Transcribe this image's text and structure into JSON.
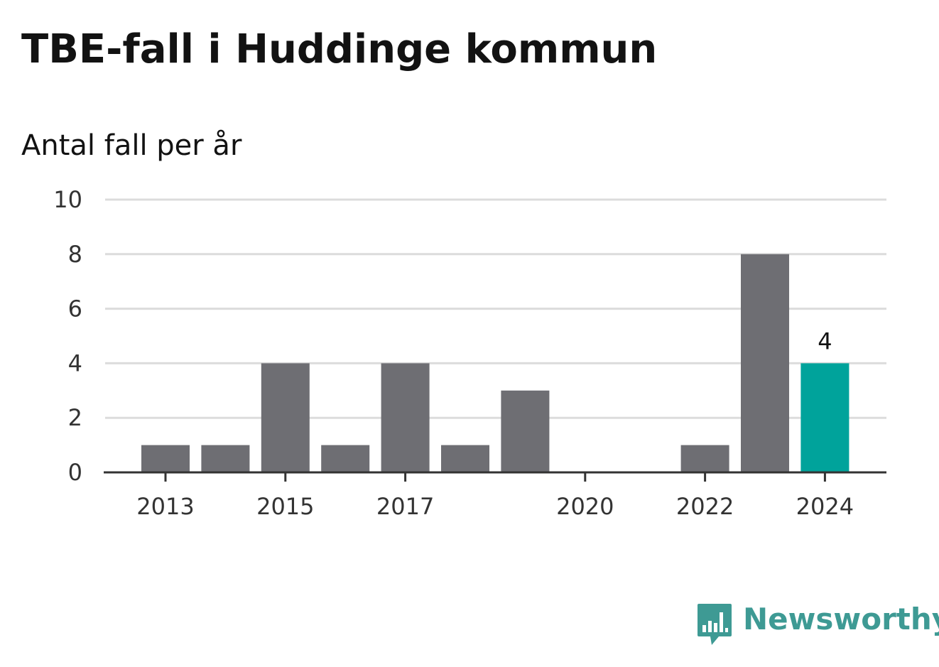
{
  "title": "TBE-fall i Huddinge kommun",
  "subtitle": "Antal fall per år",
  "logo": {
    "text": "Newsworthy",
    "icon": "bar-chart-speech-bubble-icon",
    "color": "#3e9a94"
  },
  "chart_data": {
    "type": "bar",
    "x": [
      2013,
      2014,
      2015,
      2016,
      2017,
      2018,
      2019,
      2020,
      2021,
      2022,
      2023,
      2024
    ],
    "values": [
      1,
      1,
      4,
      1,
      4,
      1,
      3,
      0,
      0,
      1,
      8,
      4
    ],
    "x_tick_labels": [
      "2013",
      "2015",
      "2017",
      "2020",
      "2022",
      "2024"
    ],
    "y_ticks": [
      0,
      2,
      4,
      6,
      8,
      10
    ],
    "ylim": [
      0,
      10
    ],
    "grid": true,
    "bar_color": "#6e6e73",
    "highlight_color": "#00a39b",
    "highlight": 2024,
    "data_labels": [
      {
        "x": 2024,
        "text": "4"
      }
    ]
  }
}
